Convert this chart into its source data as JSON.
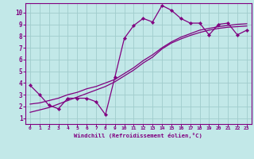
{
  "bg_color": "#c2e8e8",
  "line_color": "#800080",
  "grid_color": "#a0cccc",
  "xlabel": "Windchill (Refroidissement éolien,°C)",
  "xlabel_color": "#800080",
  "tick_color": "#800080",
  "spine_color": "#800080",
  "xlim": [
    -0.5,
    23.5
  ],
  "ylim": [
    0.5,
    10.8
  ],
  "xticks": [
    0,
    1,
    2,
    3,
    4,
    5,
    6,
    7,
    8,
    9,
    10,
    11,
    12,
    13,
    14,
    15,
    16,
    17,
    18,
    19,
    20,
    21,
    22,
    23
  ],
  "yticks": [
    1,
    2,
    3,
    4,
    5,
    6,
    7,
    8,
    9,
    10
  ],
  "line1_x": [
    0,
    1,
    2,
    3,
    4,
    5,
    6,
    7,
    8,
    9,
    10,
    11,
    12,
    13,
    14,
    15,
    16,
    17,
    18,
    19,
    20,
    21,
    22,
    23
  ],
  "line1_y": [
    3.8,
    3.0,
    2.1,
    1.8,
    2.7,
    2.7,
    2.7,
    2.4,
    1.3,
    4.5,
    7.8,
    8.9,
    9.5,
    9.2,
    10.6,
    10.2,
    9.5,
    9.1,
    9.1,
    8.1,
    9.0,
    9.1,
    8.1,
    8.5
  ],
  "line2_x": [
    0,
    1,
    2,
    3,
    4,
    5,
    6,
    7,
    8,
    9,
    10,
    11,
    12,
    13,
    14,
    15,
    16,
    17,
    18,
    19,
    20,
    21,
    22,
    23
  ],
  "line2_y": [
    2.2,
    2.3,
    2.5,
    2.7,
    3.0,
    3.2,
    3.5,
    3.7,
    4.0,
    4.3,
    4.8,
    5.3,
    5.9,
    6.4,
    7.0,
    7.5,
    7.9,
    8.2,
    8.5,
    8.65,
    8.8,
    8.9,
    9.0,
    9.05
  ],
  "line3_x": [
    0,
    1,
    2,
    3,
    4,
    5,
    6,
    7,
    8,
    9,
    10,
    11,
    12,
    13,
    14,
    15,
    16,
    17,
    18,
    19,
    20,
    21,
    22,
    23
  ],
  "line3_y": [
    1.5,
    1.7,
    1.9,
    2.2,
    2.5,
    2.8,
    3.1,
    3.4,
    3.7,
    4.1,
    4.6,
    5.1,
    5.7,
    6.2,
    6.9,
    7.4,
    7.75,
    8.05,
    8.3,
    8.5,
    8.65,
    8.75,
    8.8,
    8.85
  ]
}
